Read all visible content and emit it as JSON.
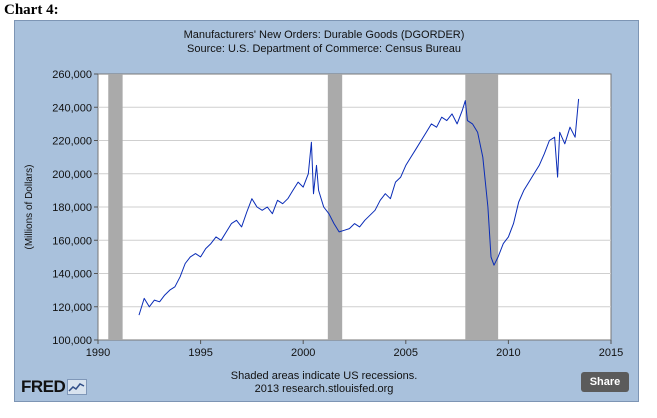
{
  "heading": "Chart 4:",
  "logo_text": "FRED",
  "logo_icon": "line-chart-icon",
  "share_label": "Share",
  "colors": {
    "panel": "#a9c1dc",
    "line": "#0a2cb7",
    "recession": "#aaaaaa",
    "grid": "#cfcfcf"
  },
  "chart_data": {
    "type": "line",
    "title": "Manufacturers' New Orders: Durable Goods (DGORDER)",
    "subtitle": "Source: U.S. Department of Commerce: Census Bureau",
    "xlabel": "",
    "ylabel": "(Millions of Dollars)",
    "footnote_1": "Shaded areas indicate US recessions.",
    "footnote_2": "2013 research.stlouisfed.org",
    "xlim": [
      1990,
      2015
    ],
    "ylim": [
      100000,
      260000
    ],
    "x_ticks": [
      1990,
      1995,
      2000,
      2005,
      2010,
      2015
    ],
    "x_tick_labels": [
      "1990",
      "1995",
      "2000",
      "2005",
      "2010",
      "2015"
    ],
    "y_ticks": [
      100000,
      120000,
      140000,
      160000,
      180000,
      200000,
      220000,
      240000,
      260000
    ],
    "y_tick_labels": [
      "100,000",
      "120,000",
      "140,000",
      "160,000",
      "180,000",
      "200,000",
      "220,000",
      "240,000",
      "260,000"
    ],
    "grid": true,
    "recessions": [
      [
        1990.5,
        1991.2
      ],
      [
        2001.2,
        2001.9
      ],
      [
        2007.9,
        2009.5
      ]
    ],
    "series": [
      {
        "x": [
          1992.0,
          1992.25,
          1992.5,
          1992.75,
          1993.0,
          1993.25,
          1993.5,
          1993.75,
          1994.0,
          1994.25,
          1994.5,
          1994.75,
          1995.0,
          1995.25,
          1995.5,
          1995.75,
          1996.0,
          1996.25,
          1996.5,
          1996.75,
          1997.0,
          1997.25,
          1997.5,
          1997.75,
          1998.0,
          1998.25,
          1998.5,
          1998.75,
          1999.0,
          1999.25,
          1999.5,
          1999.75,
          2000.0,
          2000.25,
          2000.4,
          2000.5,
          2000.65,
          2000.75,
          2001.0,
          2001.25,
          2001.5,
          2001.75,
          2002.0,
          2002.25,
          2002.5,
          2002.75,
          2003.0,
          2003.25,
          2003.5,
          2003.75,
          2004.0,
          2004.25,
          2004.5,
          2004.75,
          2005.0,
          2005.25,
          2005.5,
          2005.75,
          2006.0,
          2006.25,
          2006.5,
          2006.75,
          2007.0,
          2007.25,
          2007.5,
          2007.75,
          2007.9,
          2008.0,
          2008.25,
          2008.5,
          2008.75,
          2009.0,
          2009.15,
          2009.3,
          2009.5,
          2009.75,
          2010.0,
          2010.25,
          2010.5,
          2010.75,
          2011.0,
          2011.25,
          2011.5,
          2011.75,
          2012.0,
          2012.25,
          2012.4,
          2012.5,
          2012.75,
          2013.0,
          2013.25,
          2013.42
        ],
        "y": [
          115000,
          125000,
          120000,
          124000,
          123000,
          127000,
          130000,
          132000,
          138000,
          146000,
          150000,
          152000,
          150000,
          155000,
          158000,
          162000,
          160000,
          165000,
          170000,
          172000,
          168000,
          177000,
          185000,
          180000,
          178000,
          180000,
          176000,
          184000,
          182000,
          185000,
          190000,
          195000,
          192000,
          200000,
          219000,
          188000,
          205000,
          190000,
          180000,
          176000,
          170000,
          165000,
          166000,
          167000,
          170000,
          168000,
          172000,
          175000,
          178000,
          184000,
          188000,
          185000,
          195000,
          198000,
          205000,
          210000,
          215000,
          220000,
          225000,
          230000,
          228000,
          234000,
          232000,
          236000,
          230000,
          238000,
          244000,
          232000,
          230000,
          225000,
          210000,
          180000,
          150000,
          145000,
          150000,
          158000,
          162000,
          170000,
          183000,
          190000,
          195000,
          200000,
          205000,
          212000,
          220000,
          222000,
          198000,
          225000,
          218000,
          228000,
          222000,
          245000
        ]
      }
    ]
  }
}
